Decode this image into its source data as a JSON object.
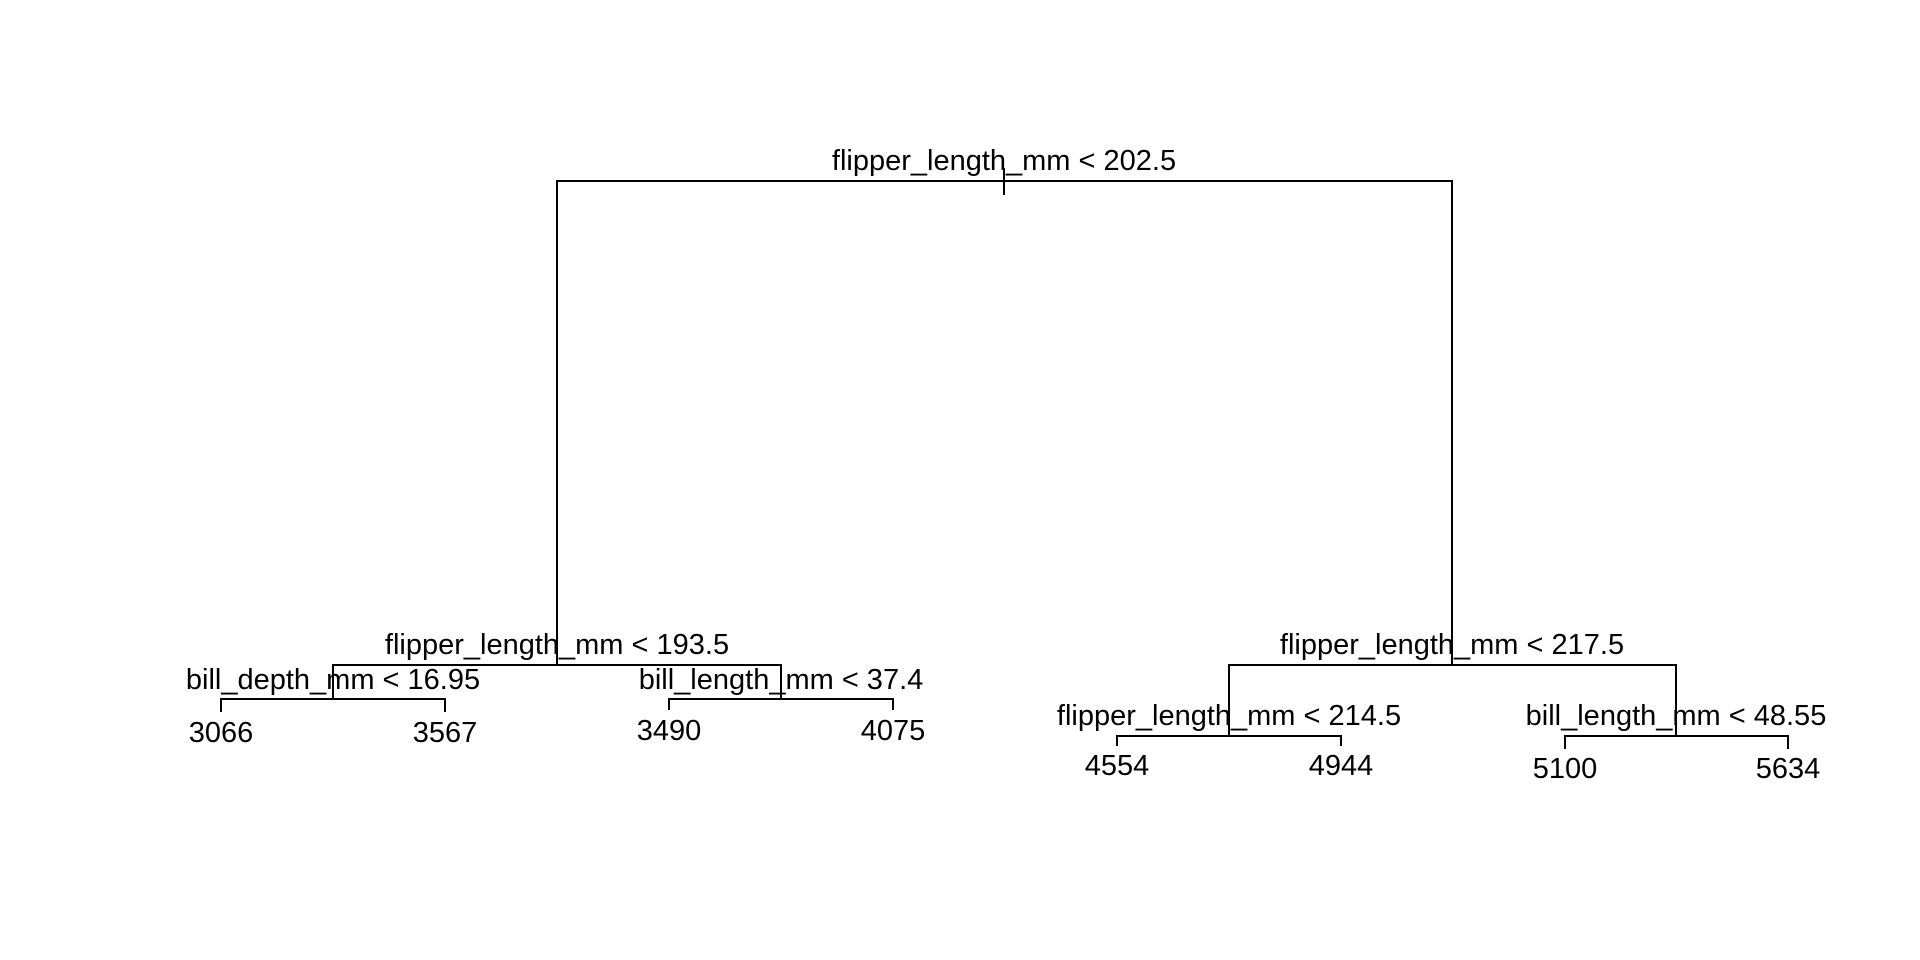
{
  "tree": {
    "root": {
      "split": "flipper_length_mm < 202.5",
      "left": {
        "split": "flipper_length_mm < 193.5",
        "left": {
          "split": "bill_depth_mm < 16.95",
          "left": {
            "value": "3066"
          },
          "right": {
            "value": "3567"
          }
        },
        "right": {
          "split": "bill_length_mm < 37.4",
          "left": {
            "value": "3490"
          },
          "right": {
            "value": "4075"
          }
        }
      },
      "right": {
        "split": "flipper_length_mm < 217.5",
        "left": {
          "split": "flipper_length_mm < 214.5",
          "left": {
            "value": "4554"
          },
          "right": {
            "value": "4944"
          }
        },
        "right": {
          "split": "bill_length_mm < 48.55",
          "left": {
            "value": "5100"
          },
          "right": {
            "value": "5634"
          }
        }
      }
    }
  }
}
